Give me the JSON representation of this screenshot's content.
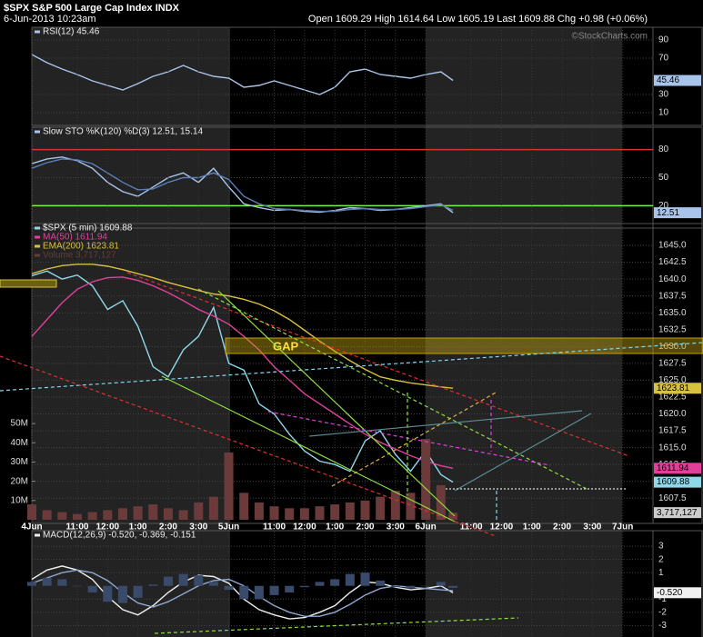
{
  "header": {
    "title": "$SPX S&P 500 Large Cap Index INDX",
    "date": "6-Jun-2013 10:23am",
    "quote": "Open 1609.29 High 1614.64 Low 1605.19 Last 1609.88 Chg +0.98 (+0.06%)",
    "credit": "©StockCharts.com"
  },
  "chart_data": [
    {
      "type": "line",
      "x": [
        0,
        0.5,
        1,
        1.5,
        2,
        2.5,
        3,
        3.5,
        4,
        4.5,
        5,
        5.5,
        6,
        6.5,
        7,
        7.5,
        8,
        8.5,
        9,
        9.5,
        10,
        10.5,
        11,
        11.5,
        12,
        12.5,
        13,
        13.5,
        13.9
      ],
      "xlim": [
        0,
        20.5
      ],
      "ylim": [
        0,
        100
      ],
      "yticks": [
        10,
        30,
        70,
        90
      ],
      "grid": true,
      "series": [
        {
          "name": "RSI(12) 45.46",
          "color": "#a9c4ea",
          "values": [
            74,
            65,
            58,
            52,
            45,
            40,
            35,
            42,
            50,
            55,
            62,
            55,
            50,
            48,
            38,
            40,
            45,
            40,
            35,
            30,
            38,
            55,
            58,
            52,
            50,
            48,
            52,
            55,
            45.46
          ]
        }
      ]
    },
    {
      "type": "line",
      "x": [
        0,
        0.5,
        1,
        1.5,
        2,
        2.5,
        3,
        3.5,
        4,
        4.5,
        5,
        5.5,
        6,
        6.5,
        7,
        7.5,
        8,
        8.5,
        9,
        9.5,
        10,
        10.5,
        11,
        11.5,
        12,
        12.5,
        13,
        13.5,
        13.9
      ],
      "xlim": [
        0,
        20.5
      ],
      "ylim": [
        0,
        100
      ],
      "yticks": [
        20,
        50,
        80
      ],
      "grid": true,
      "grid_colors": [
        "#7ef04a",
        "#444444",
        "#e03030"
      ],
      "series": [
        {
          "name": "Slow STO %K(120) %D(3) 12.51, 15.14",
          "color": "#a9c4ea",
          "values": [
            65,
            70,
            72,
            68,
            60,
            45,
            35,
            30,
            40,
            50,
            55,
            45,
            60,
            40,
            22,
            18,
            15,
            16,
            14,
            13,
            15,
            18,
            17,
            15,
            16,
            18,
            20,
            22,
            12.51
          ]
        },
        {
          "color": "#5b7fb8",
          "values": [
            60,
            66,
            70,
            69,
            65,
            55,
            45,
            37,
            38,
            45,
            50,
            50,
            55,
            48,
            30,
            22,
            17,
            16,
            15,
            14,
            14,
            16,
            17,
            16,
            16,
            17,
            19,
            21,
            15.14
          ]
        }
      ]
    },
    {
      "type": "line",
      "x": [
        0,
        0.5,
        1,
        1.5,
        2,
        2.5,
        3,
        3.5,
        4,
        4.5,
        5,
        5.5,
        6,
        6.5,
        7,
        7.5,
        8,
        8.5,
        9,
        9.5,
        10,
        10.5,
        11,
        11.5,
        12,
        12.5,
        13,
        13.5,
        13.9
      ],
      "xlim": [
        0,
        20.5
      ],
      "xticks": [
        {
          "value": 0,
          "label": "4Jun"
        },
        {
          "value": 1.5,
          "label": "11:00"
        },
        {
          "value": 2.5,
          "label": "12:00"
        },
        {
          "value": 3.5,
          "label": "1:00"
        },
        {
          "value": 4.5,
          "label": "2:00"
        },
        {
          "value": 5.5,
          "label": "3:00"
        },
        {
          "value": 6.5,
          "label": "5Jun"
        },
        {
          "value": 8,
          "label": "11:00"
        },
        {
          "value": 9,
          "label": "12:00"
        },
        {
          "value": 10,
          "label": "1:00"
        },
        {
          "value": 11,
          "label": "2:00"
        },
        {
          "value": 12,
          "label": "3:00"
        },
        {
          "value": 13,
          "label": "6Jun"
        },
        {
          "value": 14.5,
          "label": "11:00"
        },
        {
          "value": 15.5,
          "label": "12:00"
        },
        {
          "value": 16.5,
          "label": "1:00"
        },
        {
          "value": 17.5,
          "label": "2:00"
        },
        {
          "value": 18.5,
          "label": "3:00"
        },
        {
          "value": 19.5,
          "label": "7Jun"
        }
      ],
      "ylim": [
        1604.3,
        1647.7
      ],
      "yticks": [
        1607.5,
        {
          "value": 1610,
          "label": "1610.0"
        },
        1612.5,
        {
          "value": 1615,
          "label": "1615.0"
        },
        1617.5,
        {
          "value": 1620,
          "label": "1620.0"
        },
        1622.5,
        {
          "value": 1625,
          "label": "1625.0"
        },
        1627.5,
        {
          "value": 1630,
          "label": "1630.0"
        },
        1632.5,
        {
          "value": 1635,
          "label": "1635.0"
        },
        1637.5,
        {
          "value": 1640,
          "label": "1640.0"
        },
        1642.5,
        {
          "value": 1645,
          "label": "1645.0"
        }
      ],
      "y2lim": [
        0,
        152000000
      ],
      "y2ticks": [
        {
          "value": 10000000,
          "label": "10M"
        },
        {
          "value": 20000000,
          "label": "20M"
        },
        {
          "value": 30000000,
          "label": "30M"
        },
        {
          "value": 40000000,
          "label": "40M"
        },
        {
          "value": 50000000,
          "label": "50M"
        }
      ],
      "grid": true,
      "annotation": "GAP",
      "series": [
        {
          "name": "$SPX (5 min) 1609.88",
          "color": "#8fd8ea",
          "values": [
            1640.5,
            1641.2,
            1640.0,
            1640.6,
            1639.0,
            1635.5,
            1636.8,
            1633.0,
            1627.0,
            1625.5,
            1629.5,
            1631.5,
            1635.8,
            1627.5,
            1626.5,
            1621.5,
            1620.0,
            1617.0,
            1614.5,
            1613.0,
            1612.5,
            1611.5,
            1616.0,
            1617.5,
            1614.0,
            1611.5,
            1614.5,
            1611.0,
            1609.88
          ]
        },
        {
          "name": "MA(50) 1611.94",
          "color": "#e0409a",
          "values": [
            1631.5,
            1634,
            1636.5,
            1638.5,
            1639.6,
            1640.2,
            1640.3,
            1639.8,
            1639,
            1638,
            1636.8,
            1635.5,
            1634.5,
            1633.3,
            1631.5,
            1629.5,
            1627,
            1625,
            1623,
            1621.5,
            1620,
            1618.5,
            1617,
            1615.8,
            1614.8,
            1613.8,
            1613,
            1612.3,
            1611.94
          ]
        },
        {
          "name": "EMA(200) 1623.81",
          "color": "#d8c040",
          "values": [
            1640.8,
            1641.5,
            1642,
            1642.2,
            1642.2,
            1641.9,
            1641.4,
            1640.8,
            1640.2,
            1639.5,
            1638.9,
            1638.3,
            1637.8,
            1637.5,
            1637,
            1636.3,
            1635.3,
            1634,
            1632.4,
            1630.8,
            1629.3,
            1627.9,
            1626.6,
            1625.5,
            1625.0,
            1624.6,
            1624.3,
            1624.0,
            1623.81
          ]
        },
        {
          "name": "Volume 3,717,127",
          "type": "bar",
          "axis": "y2",
          "color": "#6b3a3a",
          "values": [
            8000000,
            5000000,
            4000000,
            3000000,
            4000000,
            5000000,
            6000000,
            7000000,
            8000000,
            6000000,
            5000000,
            9000000,
            12000000,
            35000000,
            14000000,
            9000000,
            7000000,
            6000000,
            6000000,
            7000000,
            8000000,
            9000000,
            10000000,
            12000000,
            15000000,
            14000000,
            42000000,
            18000000,
            3717127
          ],
          "value_labels": [
            null,
            null,
            null,
            null,
            null,
            null,
            null,
            null,
            null,
            null,
            null,
            null,
            null,
            null,
            null,
            null,
            null,
            null,
            null,
            null,
            null,
            null,
            null,
            null,
            null,
            null,
            null,
            null,
            "3,717,127"
          ]
        }
      ]
    },
    {
      "type": "line",
      "x": [
        0,
        0.5,
        1,
        1.5,
        2,
        2.5,
        3,
        3.5,
        4,
        4.5,
        5,
        5.5,
        6,
        6.5,
        7,
        7.5,
        8,
        8.5,
        9,
        9.5,
        10,
        10.5,
        11,
        11.5,
        12,
        12.5,
        13,
        13.5,
        13.9
      ],
      "xlim": [
        0,
        20.5
      ],
      "ylim": [
        -3.8,
        3.9
      ],
      "yticks": [
        -3,
        -2,
        -1,
        1,
        2,
        3
      ],
      "grid": true,
      "series": [
        {
          "name": "MACD(12,26,9) -0.520, -0.369, -0.151",
          "color": "#f0f0f0",
          "values": [
            0.5,
            1.2,
            1.5,
            1.2,
            0.5,
            -0.8,
            -1.8,
            -2.2,
            -1.5,
            -0.5,
            0.3,
            0.8,
            0.7,
            0.2,
            -1.0,
            -1.8,
            -2.2,
            -2.5,
            -2.4,
            -2.0,
            -1.5,
            -0.5,
            0.3,
            0.2,
            -0.1,
            -0.3,
            -0.2,
            0,
            -0.52
          ],
          "value_labels": [
            null,
            null,
            null,
            null,
            null,
            null,
            null,
            null,
            null,
            null,
            null,
            null,
            null,
            null,
            null,
            null,
            null,
            null,
            null,
            null,
            null,
            null,
            null,
            null,
            null,
            null,
            null,
            null,
            "-0.520"
          ]
        },
        {
          "color": "#8fa8d0",
          "values": [
            0.2,
            0.6,
            1.0,
            1.2,
            1.0,
            0.4,
            -0.5,
            -1.3,
            -1.6,
            -1.2,
            -0.6,
            0,
            0.4,
            0.5,
            0,
            -0.8,
            -1.5,
            -2.0,
            -2.3,
            -2.3,
            -2.0,
            -1.4,
            -0.7,
            -0.2,
            0,
            -0.1,
            -0.2,
            -0.3,
            -0.369
          ]
        },
        {
          "type": "bar",
          "color": "#3a4a6a",
          "values": [
            0.3,
            0.6,
            0.5,
            0,
            -0.5,
            -1.2,
            -1.3,
            -0.9,
            0.1,
            0.7,
            0.9,
            0.8,
            0.3,
            -0.3,
            -1.0,
            -1.0,
            -0.7,
            -0.5,
            -0.1,
            0.3,
            0.5,
            0.9,
            1.0,
            0.4,
            -0.1,
            -0.2,
            0,
            0.3,
            -0.151
          ]
        }
      ]
    }
  ]
}
